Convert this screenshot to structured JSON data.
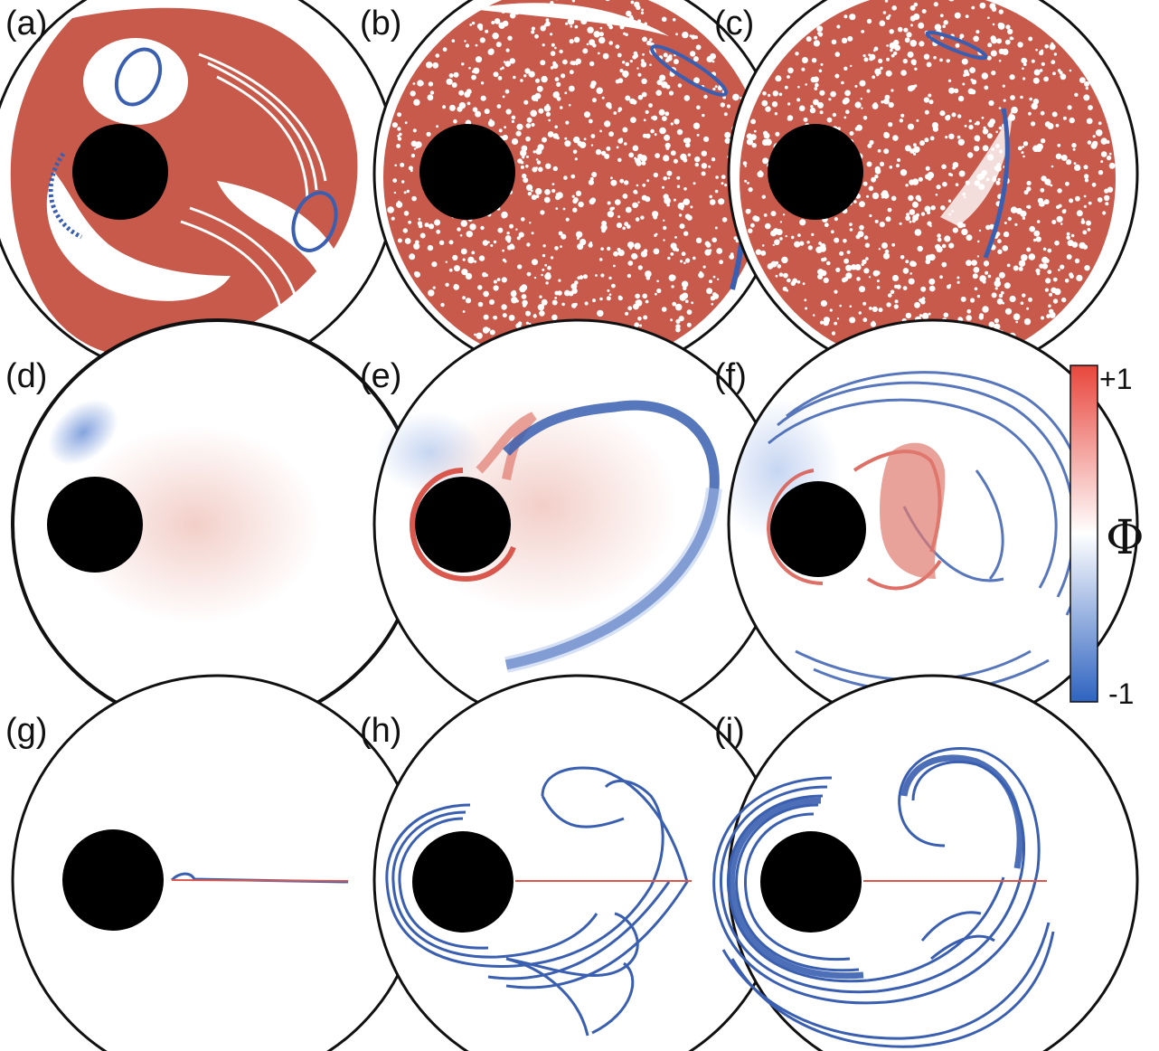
{
  "panels": [
    {
      "label": "(a)",
      "kind": "poincare-partial"
    },
    {
      "label": "(b)",
      "kind": "poincare-chaotic"
    },
    {
      "label": "(c)",
      "kind": "poincare-chaotic-band"
    },
    {
      "label": "(d)",
      "kind": "phi-field-weak"
    },
    {
      "label": "(e)",
      "kind": "phi-field-ring"
    },
    {
      "label": "(f)",
      "kind": "phi-field-complex"
    },
    {
      "label": "(g)",
      "kind": "manifold-initial"
    },
    {
      "label": "(h)",
      "kind": "manifold-stretched"
    },
    {
      "label": "(i)",
      "kind": "manifold-folded"
    }
  ],
  "colorbar": {
    "max_label": "+1",
    "min_label": "-1",
    "symbol": "Φ",
    "colors": {
      "max": "#e8463c",
      "mid": "#ffffff",
      "min": "#2e63c0"
    }
  },
  "colors": {
    "chaotic": "#c85a4c",
    "regular": "#3a5fb0",
    "obstacle": "#000000",
    "boundary": "#111111"
  }
}
